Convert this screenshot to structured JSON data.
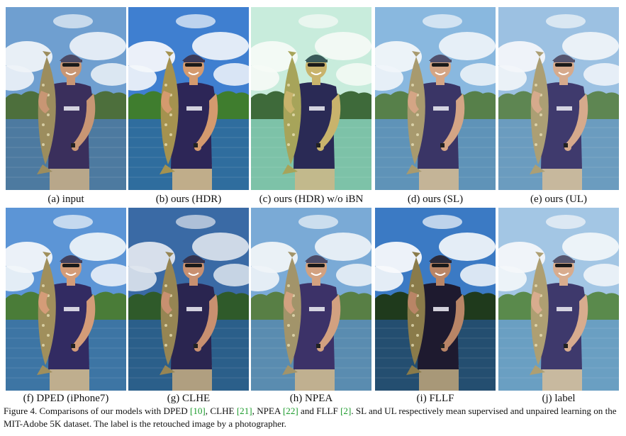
{
  "panels": [
    {
      "caption": "(a) input",
      "style": "input"
    },
    {
      "caption": "(b) ours (HDR)",
      "style": "hdr"
    },
    {
      "caption": "(c) ours (HDR) w/o iBN",
      "style": "noibn"
    },
    {
      "caption": "(d) ours (SL)",
      "style": "sl"
    },
    {
      "caption": "(e) ours (UL)",
      "style": "ul"
    },
    {
      "caption": "(f) DPED (iPhone7)",
      "style": "dped"
    },
    {
      "caption": "(g) CLHE",
      "style": "clhe"
    },
    {
      "caption": "(h) NPEA",
      "style": "npea"
    },
    {
      "caption": "(i) FLLF",
      "style": "fllf"
    },
    {
      "caption": "(j) label",
      "style": "label"
    }
  ],
  "figure_caption": {
    "t1": "Figure 4. Comparisons of our models with DPED ",
    "r1": "[10]",
    "t2": ", CLHE ",
    "r2": "[21]",
    "t3": ", NPEA ",
    "r3": "[22]",
    "t4": " and FLLF ",
    "r4": "[2]",
    "t5": ". SL and UL respectively mean supervised and unpaired learning on the MIT-Adobe 5K dataset. The label is the retouched image by a photographer."
  },
  "colors": {
    "citation": "#1a9a2a",
    "input": {
      "sky": "#6f9fd0",
      "cloud": "#eef3f8",
      "trees": "#4d6f3c",
      "water": "#4d7aa0",
      "shirt": "#3a2f5c",
      "skin": "#c89674",
      "fish": "#9c8d5e",
      "cap": "#4a4a66",
      "shorts": "#b8a78a"
    },
    "hdr": {
      "sky": "#3f7fd0",
      "cloud": "#f4f7fb",
      "trees": "#3f7d2e",
      "water": "#2f6d9e",
      "shirt": "#2d2657",
      "skin": "#d49a6e",
      "fish": "#a5924f",
      "cap": "#3a3a5a",
      "shorts": "#c0ad8a"
    },
    "noibn": {
      "sky": "#c8ecdc",
      "cloud": "#f6fbf6",
      "trees": "#3e6a3a",
      "water": "#7dc2a8",
      "shirt": "#2a2a55",
      "skin": "#c8b36c",
      "fish": "#a7a45a",
      "cap": "#3a5a5a",
      "shorts": "#c2b98c"
    },
    "sl": {
      "sky": "#89b8df",
      "cloud": "#f1f5f9",
      "trees": "#57804a",
      "water": "#5f93b8",
      "shirt": "#3a3566",
      "skin": "#d4a585",
      "fish": "#a89a6e",
      "cap": "#4f4f6c",
      "shorts": "#c4b497"
    },
    "ul": {
      "sky": "#9cc1e2",
      "cloud": "#f3f6fa",
      "trees": "#5e8652",
      "water": "#6b9cbf",
      "shirt": "#3f3a6d",
      "skin": "#d6aa8c",
      "fish": "#ac9f74",
      "cap": "#55556f",
      "shorts": "#c7b89d"
    },
    "dped": {
      "sky": "#5c95d6",
      "cloud": "#f2f6fa",
      "trees": "#4a7c38",
      "water": "#3d75a4",
      "shirt": "#322b62",
      "skin": "#d49c78",
      "fish": "#a08f5c",
      "cap": "#40405e",
      "shorts": "#bfae8e"
    },
    "clhe": {
      "sky": "#3a6aa5",
      "cloud": "#dfe6ee",
      "trees": "#2f5a2a",
      "water": "#2b5f8a",
      "shirt": "#2a2550",
      "skin": "#c89070",
      "fish": "#968553",
      "cap": "#33334f",
      "shorts": "#b09f80"
    },
    "npea": {
      "sky": "#7aaad6",
      "cloud": "#f0f4f8",
      "trees": "#587f45",
      "water": "#5a8cb0",
      "shirt": "#3c3268",
      "skin": "#d2a180",
      "fish": "#a2946a",
      "cap": "#4b4b68",
      "shorts": "#c0b090"
    },
    "fllf": {
      "sky": "#3b7ac4",
      "cloud": "#f7f9fc",
      "trees": "#1f3a1c",
      "water": "#244e70",
      "shirt": "#1e1a2f",
      "skin": "#b98566",
      "fish": "#8a7b4a",
      "cap": "#2a2a3a",
      "shorts": "#a89878"
    },
    "label": {
      "sky": "#a3c6e4",
      "cloud": "#f4f7fa",
      "trees": "#5a8a4c",
      "water": "#6a9fc2",
      "shirt": "#3e396c",
      "skin": "#d8ac8e",
      "fish": "#ae9f72",
      "cap": "#56566f",
      "shorts": "#c8b99f"
    }
  }
}
